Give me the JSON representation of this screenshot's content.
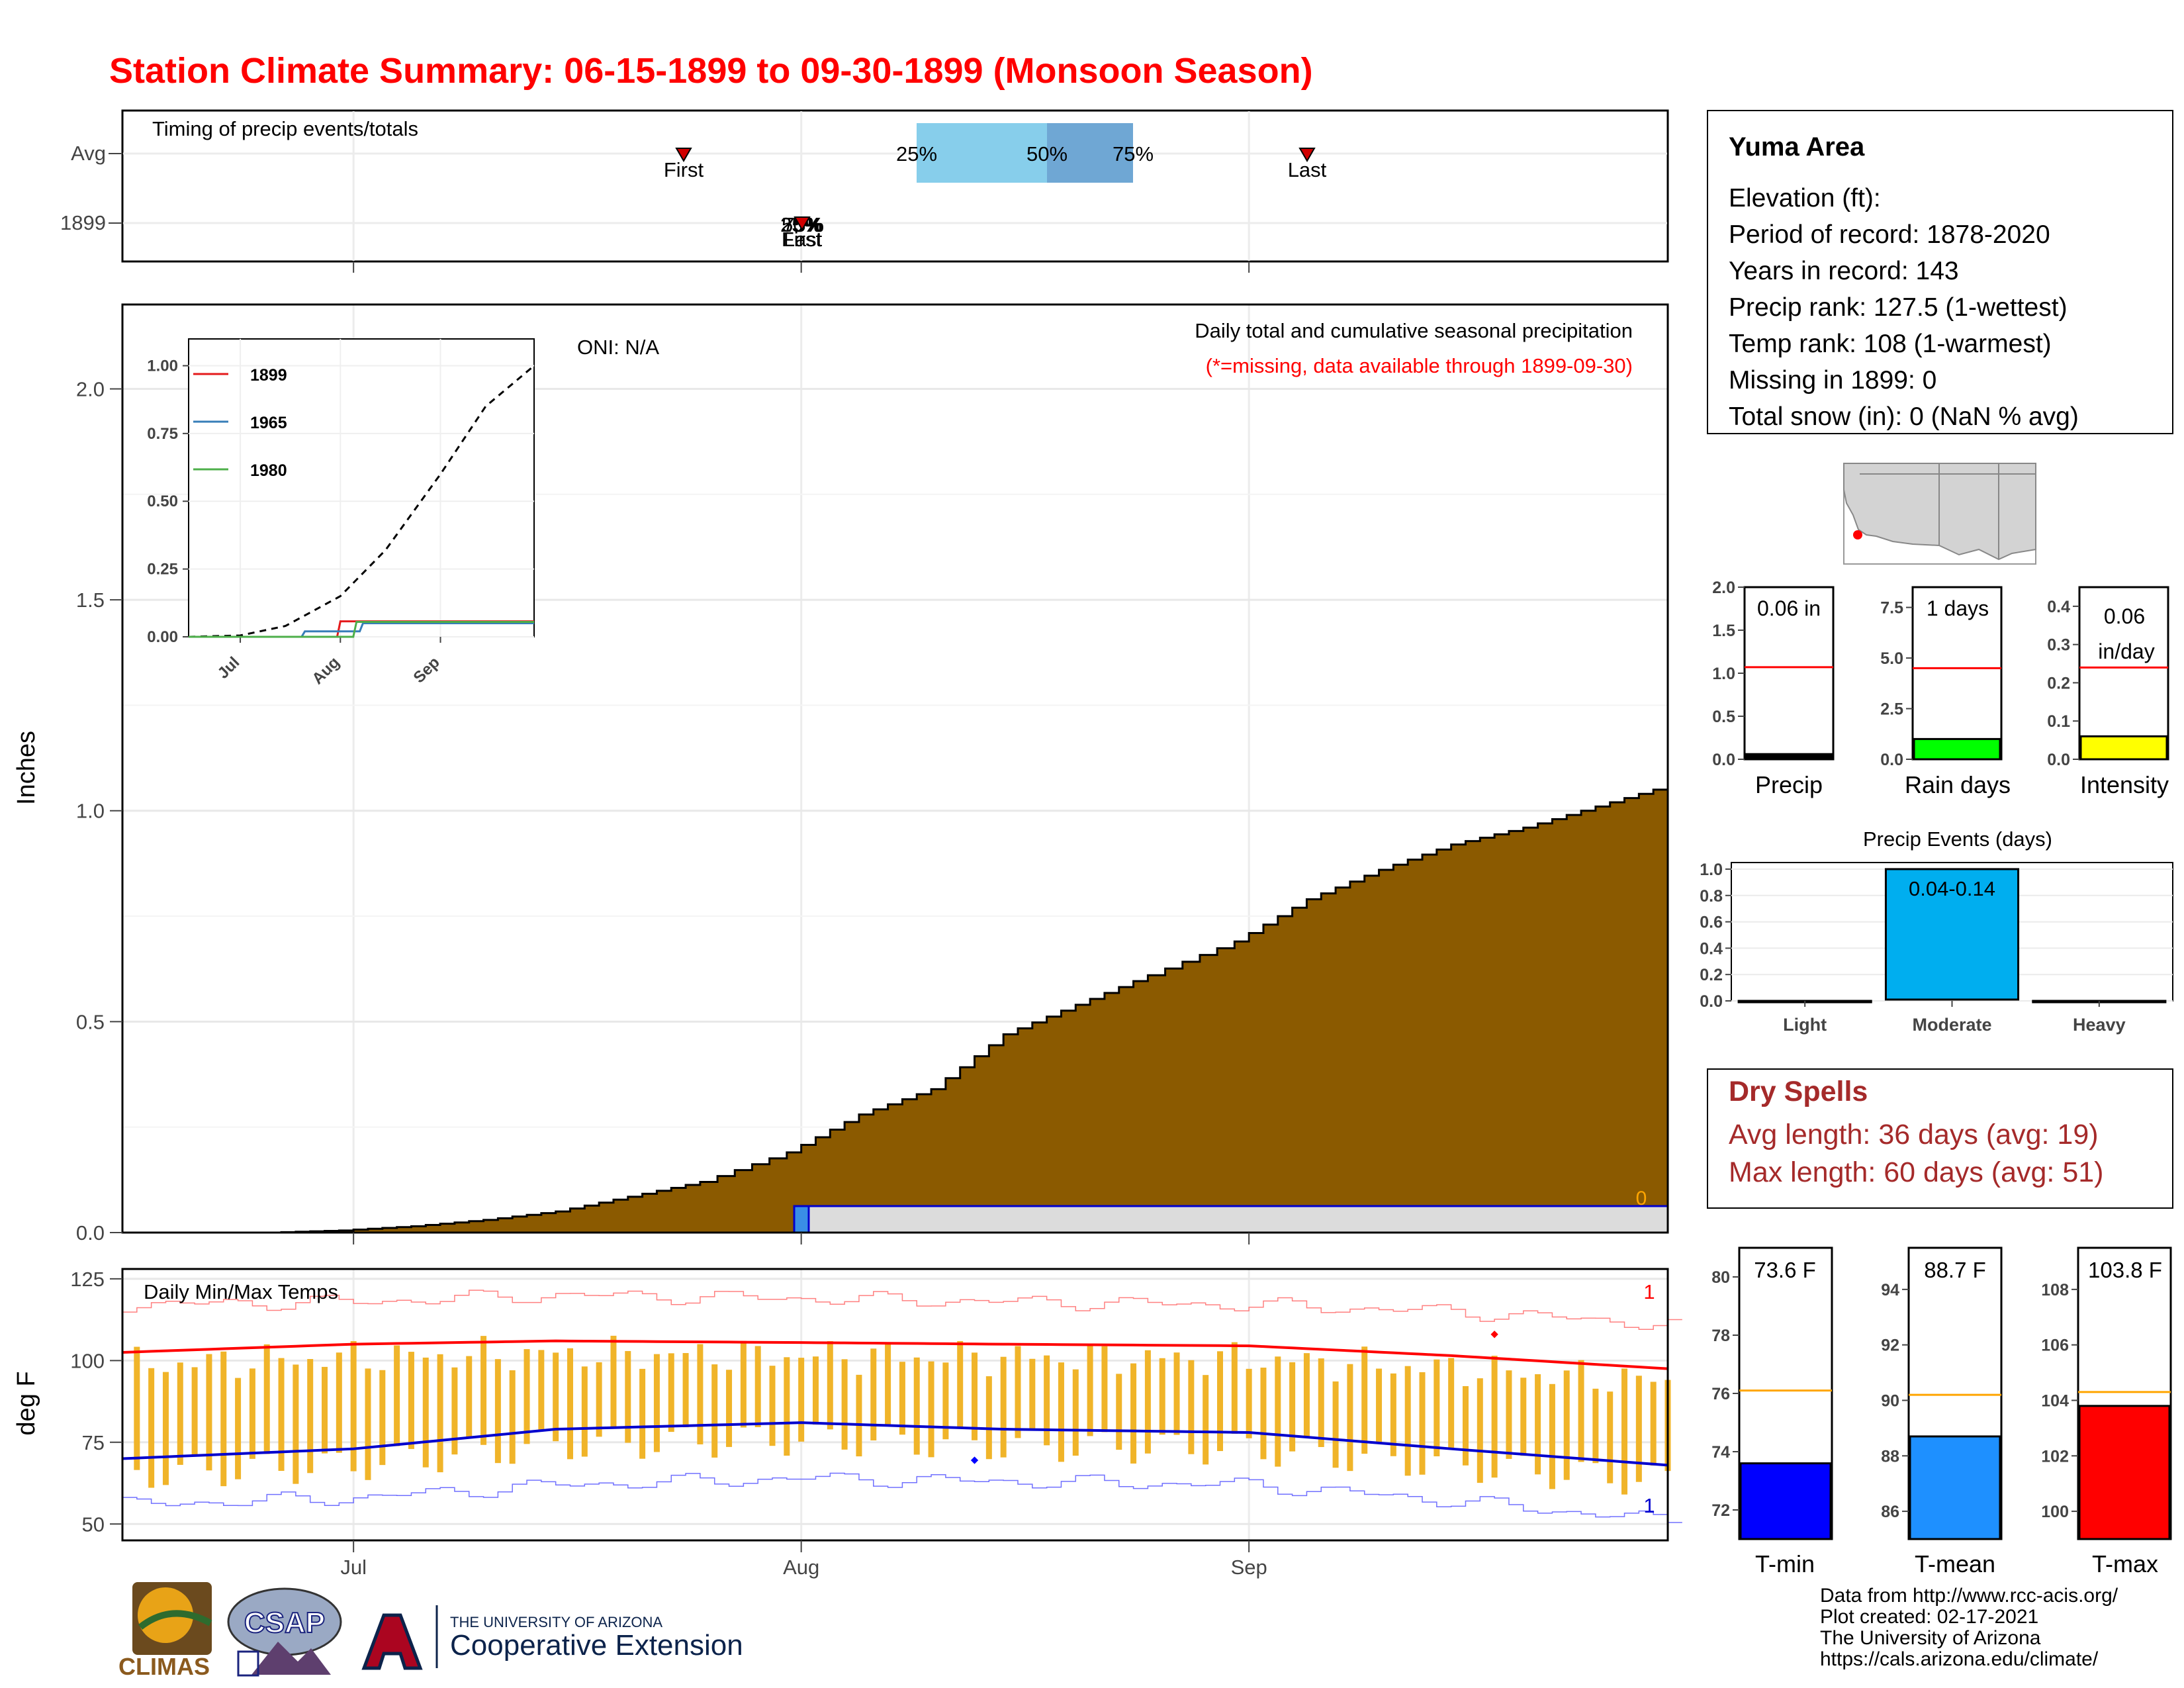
{
  "title": "Station Climate Summary: 06-15-1899 to 09-30-1899 (Monsoon Season)",
  "colors": {
    "title": "#ff0000",
    "precip_fill": "#8b5a00",
    "tmax": "#ff0000",
    "tmin": "#0000cd",
    "temp_bar": "#f0b429",
    "dry_spell": "#a52a2a",
    "rain_days_bar": "#00ff00",
    "intensity_bar": "#ffff00",
    "events_bar": "#00aeef",
    "tmin_bar": "#0000ff",
    "tmean_bar": "#1e90ff",
    "tmax_bar": "#ff0000",
    "avg_line_red": "#ff0000",
    "avg_line_orange": "#ffa500"
  },
  "month_ticks": [
    "Jul",
    "Aug",
    "Sep"
  ],
  "timing": {
    "title": "Timing of precip events/totals",
    "rows": [
      "Avg",
      "1899"
    ],
    "avg_first_label": "First",
    "avg_last_label": "Last",
    "pct_labels": [
      "25%",
      "50%",
      "75%"
    ],
    "y1899_overlap_labels": [
      "25%",
      "50%",
      "75%"
    ],
    "y1899_first_label": "First",
    "y1899_last_label": "Last"
  },
  "main": {
    "ylabel": "Inches",
    "y_ticks": [
      "0.0",
      "0.5",
      "1.0",
      "1.5",
      "2.0"
    ],
    "oni": "ONI: N/A",
    "legend_title": "Daily total and cumulative seasonal precipitation",
    "legend_sub": "(*=missing, data available through 1899-09-30)",
    "zero_label": "0"
  },
  "inset": {
    "y_ticks": [
      "0.00",
      "0.25",
      "0.50",
      "0.75",
      "1.00"
    ],
    "x_ticks": [
      "Jul",
      "Aug",
      "Sep"
    ],
    "legend": [
      "1899",
      "1965",
      "1980"
    ]
  },
  "temps": {
    "title": "Daily Min/Max Temps",
    "ylabel": "deg F",
    "y_ticks": [
      "50",
      "75",
      "100",
      "125"
    ],
    "count_max": "1",
    "count_min": "1"
  },
  "info": {
    "station": "Yuma Area",
    "lines": [
      "Elevation (ft):",
      "Period of record: 1878-2020",
      "Years in record: 143",
      "Precip rank: 127.5 (1-wettest)",
      "Temp rank: 108 (1-warmest)",
      "Missing in 1899: 0",
      "Total snow (in): 0 (NaN % avg)"
    ]
  },
  "mini_bars": {
    "precip": {
      "label": "Precip",
      "value_text": "0.06 in",
      "value": 0.06,
      "avg": 1.07,
      "ymax": 2.0,
      "ticks": [
        "0.0",
        "0.5",
        "1.0",
        "1.5",
        "2.0"
      ]
    },
    "rain_days": {
      "label": "Rain days",
      "value_text": "1 days",
      "value": 1,
      "avg": 4.5,
      "ymax": 8.5,
      "ticks": [
        "0.0",
        "2.5",
        "5.0",
        "7.5"
      ]
    },
    "intensity": {
      "label": "Intensity",
      "value_text": "0.06",
      "value_text2": "in/day",
      "value": 0.06,
      "avg": 0.24,
      "ymax": 0.45,
      "ticks": [
        "0.0",
        "0.1",
        "0.2",
        "0.3",
        "0.4"
      ]
    }
  },
  "events": {
    "title": "Precip Events (days)",
    "categories": [
      "Light",
      "Moderate",
      "Heavy"
    ],
    "values": [
      0,
      1,
      0
    ],
    "bar_label": "0.04-0.14",
    "ticks": [
      "0.0",
      "0.2",
      "0.4",
      "0.6",
      "0.8",
      "1.0"
    ]
  },
  "dry_spells": {
    "title": "Dry Spells",
    "avg": "Avg length: 36 days (avg: 19)",
    "max": "Max length: 60 days (avg: 51)"
  },
  "temp_boxes": {
    "tmin": {
      "label": "T-min",
      "value_text": "73.6 F",
      "value": 73.6,
      "avg": 76.1,
      "ymin": 71,
      "ymax": 81,
      "ticks": [
        "72",
        "74",
        "76",
        "78",
        "80"
      ]
    },
    "tmean": {
      "label": "T-mean",
      "value_text": "88.7 F",
      "value": 88.7,
      "avg": 90.2,
      "ymin": 85,
      "ymax": 95.5,
      "ticks": [
        "86",
        "88",
        "90",
        "92",
        "94"
      ]
    },
    "tmax": {
      "label": "T-max",
      "value_text": "103.8 F",
      "value": 103.8,
      "avg": 104.3,
      "ymin": 99,
      "ymax": 109.5,
      "ticks": [
        "100",
        "102",
        "104",
        "106",
        "108"
      ]
    }
  },
  "footer": {
    "lines": [
      "Data from http://www.rcc-acis.org/",
      "Plot created: 02-17-2021",
      "The University of Arizona",
      "https://cals.arizona.edu/climate/"
    ],
    "logo_climas": "CLIMAS",
    "logo_csap": "CSAP",
    "logo_ua_small": "THE UNIVERSITY OF ARIZONA",
    "logo_ua_big": "Cooperative Extension"
  },
  "chart_data": [
    {
      "type": "area",
      "title": "Daily total and cumulative seasonal precipitation",
      "ylabel": "Inches",
      "ylim": [
        0,
        2.2
      ],
      "x_range": [
        "1899-06-15",
        "1899-09-30"
      ],
      "x_ticks": [
        "Jul",
        "Aug",
        "Sep"
      ],
      "series": [
        {
          "x": [
            "06-20",
            "06-25",
            "06-30",
            "07-05",
            "07-10",
            "07-15",
            "07-20",
            "07-25",
            "07-31",
            "08-05",
            "08-10",
            "08-15",
            "08-20",
            "08-25",
            "08-31",
            "09-05",
            "09-10",
            "09-15",
            "09-20",
            "09-25",
            "09-30"
          ],
          "values": [
            0.0,
            0.0,
            0.005,
            0.015,
            0.03,
            0.05,
            0.085,
            0.12,
            0.19,
            0.28,
            0.34,
            0.47,
            0.54,
            0.61,
            0.69,
            0.79,
            0.86,
            0.92,
            0.96,
            1.01,
            1.06
          ]
        },
        {
          "name": "1899",
          "x": [
            "06-15",
            "07-31",
            "08-01",
            "09-30"
          ],
          "values": [
            0,
            0,
            0.06,
            0.06
          ]
        }
      ]
    },
    {
      "type": "line",
      "title": "Daily Min/Max Temps",
      "ylabel": "deg F",
      "ylim": [
        45,
        128
      ],
      "x_ticks": [
        "Jul",
        "Aug",
        "Sep"
      ],
      "series": [
        {
          "x": [
            "06-15",
            "07-01",
            "07-15",
            "08-01",
            "08-15",
            "09-01",
            "09-15",
            "09-30"
          ],
          "values": [
            102.5,
            105,
            106,
            105.5,
            105,
            104.5,
            101.5,
            97.5
          ]
        },
        {
          "x": [
            "06-15",
            "07-01",
            "07-15",
            "08-01",
            "08-15",
            "09-01",
            "09-15",
            "09-30"
          ],
          "values": [
            70,
            73,
            79,
            81,
            79,
            78,
            73,
            68
          ]
        },
        {
          "x": [
            "06-15",
            "07-01",
            "07-15",
            "08-01",
            "08-15",
            "09-01",
            "09-15",
            "09-30"
          ],
          "values": [
            117,
            118,
            120,
            119,
            118,
            117,
            115,
            111
          ]
        },
        {
          "x": [
            "06-15",
            "07-01",
            "07-15",
            "08-01",
            "08-15",
            "09-01",
            "09-15",
            "09-30"
          ],
          "values": [
            56,
            58,
            62,
            64,
            63,
            62,
            57,
            51
          ]
        }
      ]
    },
    {
      "type": "line",
      "x_ticks": [
        "Jul",
        "Aug",
        "Sep"
      ],
      "ylim": [
        0,
        1.05
      ],
      "series": [
        {
          "x": [
            "06-15",
            "07-01",
            "07-15",
            "08-01",
            "08-15",
            "09-01",
            "09-15",
            "09-30"
          ],
          "values": [
            0,
            0.005,
            0.04,
            0.15,
            0.32,
            0.6,
            0.85,
            1.0
          ]
        },
        {
          "name": "1899",
          "x": [
            "06-15",
            "07-31",
            "08-01",
            "09-30"
          ],
          "values": [
            0,
            0,
            0.057,
            0.057
          ]
        },
        {
          "name": "1965",
          "x": [
            "06-15",
            "07-20",
            "07-21",
            "08-07",
            "08-08",
            "09-30"
          ],
          "values": [
            0,
            0,
            0.02,
            0.02,
            0.05,
            0.05
          ]
        },
        {
          "name": "1980",
          "x": [
            "06-15",
            "08-05",
            "08-06",
            "09-30"
          ],
          "values": [
            0,
            0,
            0.055,
            0.055
          ]
        }
      ]
    }
  ]
}
